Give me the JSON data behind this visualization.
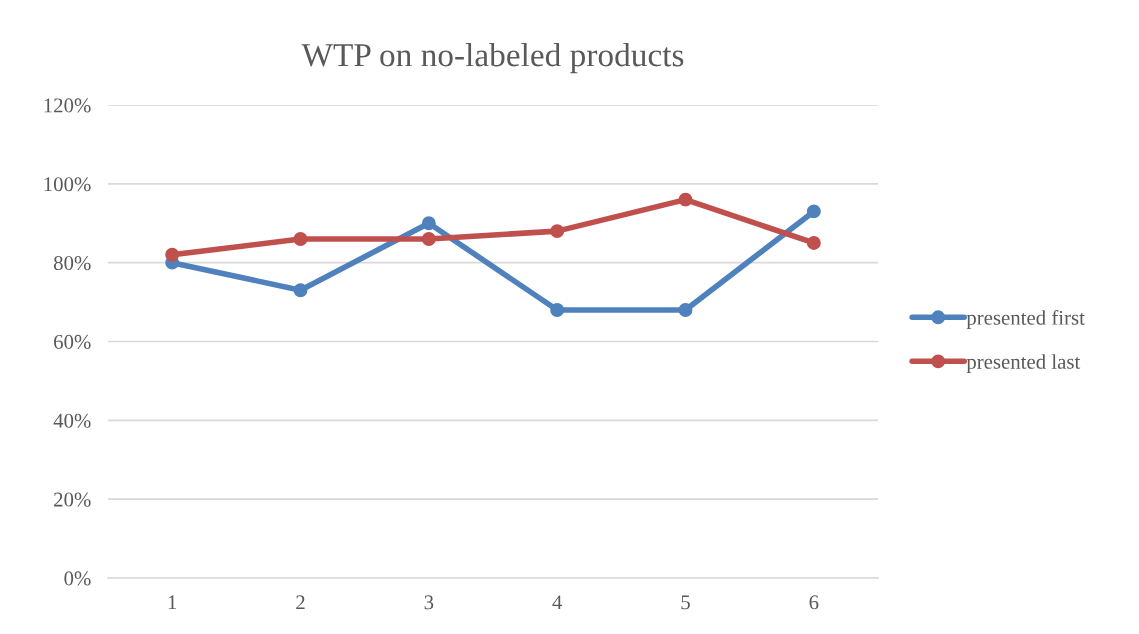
{
  "chart_data": {
    "type": "line",
    "title": "WTP on no-labeled products",
    "categories": [
      "1",
      "2",
      "3",
      "4",
      "5",
      "6"
    ],
    "series": [
      {
        "name": "presented first",
        "color": "#4f81bd",
        "values": [
          80,
          73,
          90,
          68,
          68,
          93
        ]
      },
      {
        "name": "presented last",
        "color": "#c0504d",
        "values": [
          82,
          86,
          86,
          88,
          96,
          85
        ]
      }
    ],
    "ylim": [
      0,
      120
    ],
    "yticks": [
      {
        "value": 0,
        "label": "0%"
      },
      {
        "value": 20,
        "label": "20%"
      },
      {
        "value": 40,
        "label": "40%"
      },
      {
        "value": 60,
        "label": "60%"
      },
      {
        "value": 80,
        "label": "80%"
      },
      {
        "value": 100,
        "label": "100%"
      },
      {
        "value": 120,
        "label": "120%"
      }
    ],
    "grid": "y",
    "legend": "right",
    "marker": "circle",
    "line_style": "solid"
  }
}
